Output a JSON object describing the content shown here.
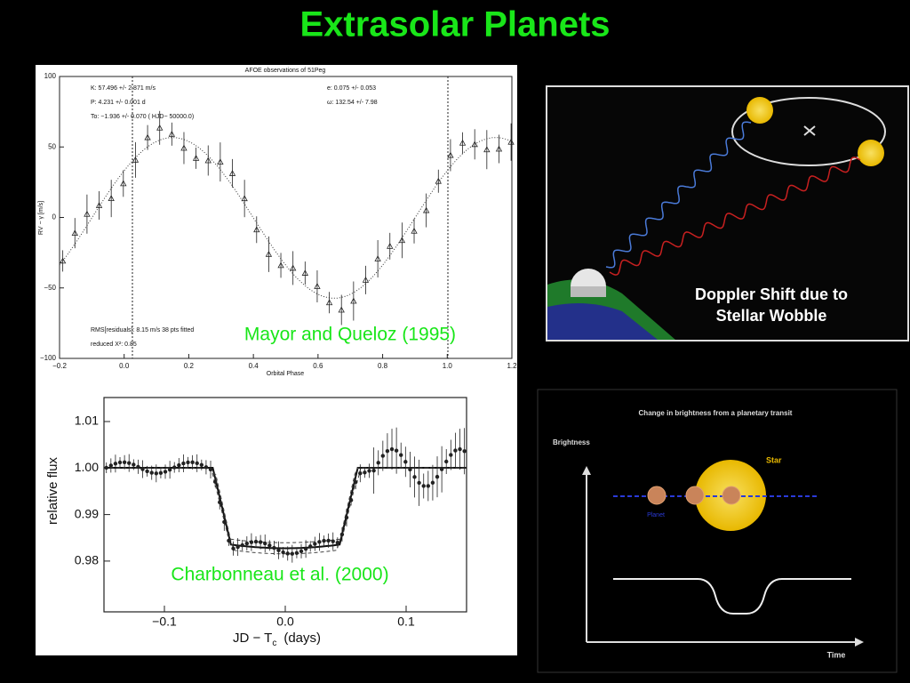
{
  "title": "Extrasolar Planets",
  "rv_plot": {
    "title": "AFOE observations of 51Peg",
    "params_left": [
      "K: 57.496 +/-      2.871 m/s",
      "P: 4.231 +/-      0.001 d",
      "To: −1.936 +/-      0.070 ( HJD− 50000.0)"
    ],
    "params_right": [
      "e: 0.075 +/-      0.053",
      "ω: 132.54 +/-     7.98"
    ],
    "rms": "RMS[residuals]: 8.15 m/s   38 pts fitted",
    "chi": "reduced X²: 0.85",
    "y_label": "RV − γ  [m/s]",
    "x_label": "Orbital Phase",
    "y_ticks": [
      "100",
      "50",
      "0",
      "−50",
      "−100"
    ],
    "x_ticks": [
      "−0.2",
      "0.0",
      "0.2",
      "0.4",
      "0.6",
      "0.8",
      "1.0",
      "1.2"
    ],
    "caption": "Mayor and Queloz (1995)"
  },
  "doppler": {
    "lines": [
      "Doppler Shift due to",
      "Stellar Wobble"
    ]
  },
  "transit_plot": {
    "y_ticks": [
      "1.01",
      "1.00",
      "0.99",
      "0.98"
    ],
    "x_ticks": [
      "−0.1",
      "0.0",
      "0.1"
    ],
    "y_label": "relative flux",
    "x_label": "JD − T",
    "x_label_sub": "c",
    "x_label_unit": "(days)",
    "caption": "Charbonneau et al. (2000)"
  },
  "transit_diagram": {
    "title": "Change in brightness from a planetary transit",
    "y_label": "Brightness",
    "star": "Star",
    "planet": "Planet",
    "x_label": "Time"
  }
}
